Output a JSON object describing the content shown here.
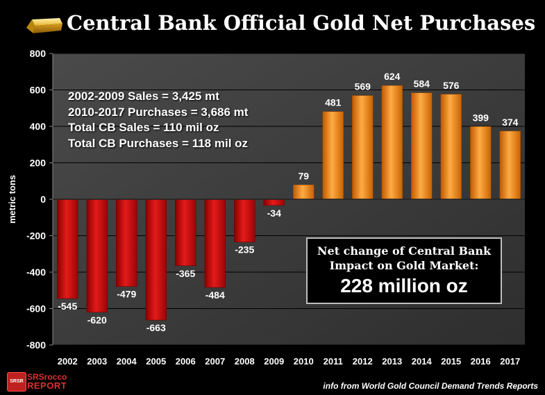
{
  "header": {
    "title": "Central Bank Official Gold Net Purchases"
  },
  "stats": {
    "line1": "2002-2009 Sales = 3,425 mt",
    "line2": "2010-2017 Purchases = 3,686 mt",
    "line3": "Total CB Sales = 110 mil oz",
    "line4": "Total CB Purchases = 118 mil oz"
  },
  "callout": {
    "line1": "Net change of Central Bank",
    "line2": "Impact on Gold Market:",
    "value": "228 million oz"
  },
  "footer": {
    "source": "info from World Gold Council Demand Trends Reports",
    "logo_line1": "SRSrocco",
    "logo_line2": "REPORT",
    "logo_badge": "SRSR"
  },
  "colors": {
    "negative": "#cc1010",
    "positive": "#f08a1a",
    "plot_bg": "#3a3a3a",
    "grid": "#000000"
  },
  "chart_data": {
    "type": "bar",
    "title": "Central Bank Official Gold Net Purchases",
    "xlabel": "",
    "ylabel": "metric tons",
    "ylim": [
      -800,
      800
    ],
    "yticks": [
      800,
      600,
      400,
      200,
      0,
      -200,
      -400,
      -600,
      -800
    ],
    "grid": true,
    "categories": [
      "2002",
      "2003",
      "2004",
      "2005",
      "2006",
      "2007",
      "2008",
      "2009",
      "2010",
      "2011",
      "2012",
      "2013",
      "2014",
      "2015",
      "2016",
      "2017"
    ],
    "values": [
      -545,
      -620,
      -479,
      -663,
      -365,
      -484,
      -235,
      -34,
      79,
      481,
      569,
      624,
      584,
      576,
      399,
      374
    ]
  }
}
